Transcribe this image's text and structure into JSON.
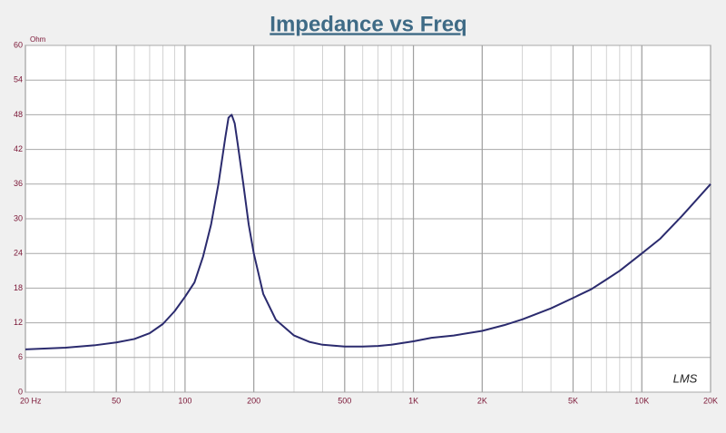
{
  "chart_data": {
    "type": "line",
    "title": "Impedance vs Freq",
    "y_unit": "Ohm",
    "logo": "LMS",
    "x_log": true,
    "grid": true,
    "minor_grid": true,
    "xlim": [
      20,
      20000
    ],
    "ylim": [
      0,
      60
    ],
    "xticks": [
      {
        "value": 20,
        "label": "20  Hz"
      },
      50,
      100,
      200,
      500,
      {
        "value": 1000,
        "label": "1K"
      },
      {
        "value": 2000,
        "label": "2K"
      },
      {
        "value": 5000,
        "label": "5K"
      },
      {
        "value": 10000,
        "label": "10K"
      },
      {
        "value": 20000,
        "label": "20K"
      }
    ],
    "yticks": [
      0,
      6,
      12,
      18,
      24,
      30,
      36,
      42,
      48,
      54,
      60
    ],
    "x": [
      20,
      30,
      40,
      50,
      60,
      70,
      80,
      90,
      100,
      110,
      120,
      130,
      140,
      150,
      155,
      160,
      165,
      170,
      180,
      190,
      200,
      220,
      250,
      300,
      350,
      400,
      500,
      600,
      700,
      800,
      1000,
      1200,
      1500,
      2000,
      2500,
      3000,
      4000,
      5000,
      6000,
      7000,
      8000,
      10000,
      12000,
      15000,
      20000
    ],
    "series": [
      {
        "color": "#2b2b6e",
        "values": [
          7.4,
          7.7,
          8.1,
          8.6,
          9.2,
          10.2,
          11.8,
          14,
          16.5,
          19,
          23.5,
          29,
          36,
          44,
          47.5,
          48,
          46.5,
          43,
          36,
          29,
          24,
          17,
          12.5,
          9.8,
          8.7,
          8.2,
          7.9,
          7.9,
          8.0,
          8.2,
          8.8,
          9.4,
          9.8,
          10.6,
          11.6,
          12.6,
          14.5,
          16.3,
          17.8,
          19.5,
          21,
          24,
          26.5,
          30.5,
          36
        ]
      }
    ]
  }
}
